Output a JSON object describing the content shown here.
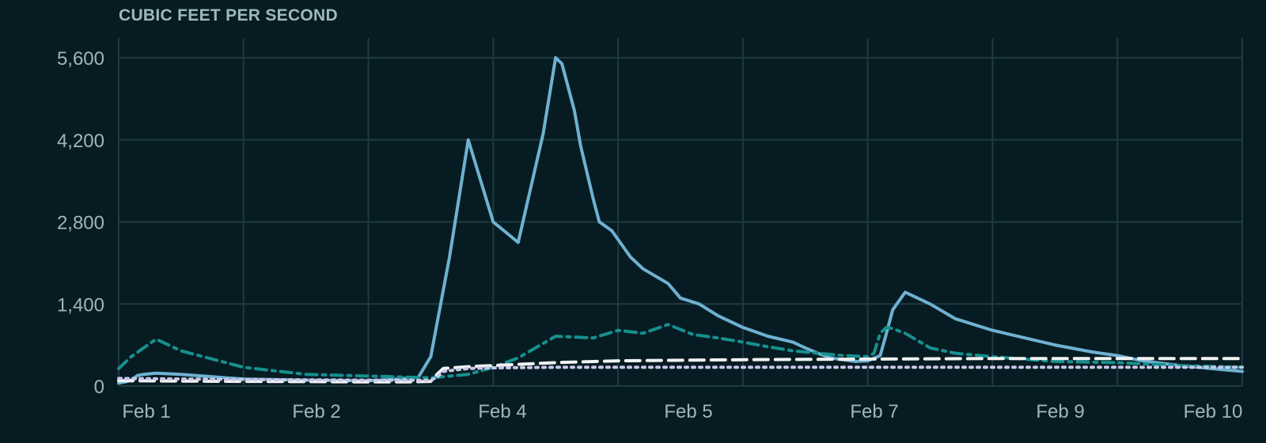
{
  "chart_data": {
    "type": "line",
    "title": "CUBIC FEET PER SECOND",
    "ylabel": "",
    "xlabel": "",
    "ylim": [
      0,
      5600
    ],
    "yticks": [
      0,
      1400,
      2800,
      4200,
      5600
    ],
    "ytick_labels": [
      "0",
      "1,400",
      "2,800",
      "4,200",
      "5,600"
    ],
    "xlim": [
      0,
      9
    ],
    "xticks": [
      0,
      1,
      2,
      3,
      4,
      5,
      6,
      7,
      8
    ],
    "xtick_labels": [
      "Feb 1",
      "Feb 2",
      "Feb 4",
      "Feb 5",
      "Feb 7",
      "Feb 9",
      "Feb 10"
    ],
    "xtick_label_positions": [
      0.05,
      1,
      2,
      3,
      4,
      5,
      6
    ],
    "grid": true,
    "series": [
      {
        "style": "solid",
        "color": "#6fb1d2",
        "x": [
          0,
          0.05,
          0.1,
          0.15,
          0.2,
          0.3,
          0.5,
          0.8,
          1.0,
          1.5,
          2.0,
          2.2,
          2.4,
          2.5,
          2.65,
          2.8,
          3.0,
          3.2,
          3.4,
          3.5,
          3.55,
          3.65,
          3.7,
          3.8,
          3.85,
          3.95,
          4.1,
          4.2,
          4.4,
          4.5,
          4.65,
          4.8,
          5.0,
          5.2,
          5.4,
          5.5,
          5.6,
          5.7,
          5.8,
          5.9,
          6.0,
          6.1,
          6.15,
          6.2,
          6.3,
          6.5,
          6.7,
          7.0,
          7.3,
          7.5,
          7.8,
          8.0,
          8.2,
          8.5,
          9.0
        ],
        "y": [
          50,
          70,
          100,
          180,
          200,
          220,
          200,
          150,
          120,
          100,
          90,
          110,
          150,
          500,
          2200,
          4200,
          2800,
          2450,
          4300,
          5600,
          5500,
          4700,
          4100,
          3200,
          2800,
          2650,
          2200,
          2000,
          1750,
          1500,
          1400,
          1200,
          1000,
          850,
          750,
          650,
          560,
          480,
          450,
          420,
          430,
          520,
          900,
          1300,
          1600,
          1400,
          1150,
          950,
          800,
          700,
          580,
          520,
          430,
          350,
          250
        ]
      },
      {
        "style": "dashdot",
        "color": "#16908f",
        "x": [
          0,
          0.1,
          0.3,
          0.5,
          1.0,
          1.5,
          2.0,
          2.5,
          2.8,
          3.0,
          3.2,
          3.5,
          3.8,
          4.0,
          4.2,
          4.4,
          4.6,
          4.8,
          5.0,
          5.2,
          5.4,
          5.5,
          5.6,
          5.8,
          6.0,
          6.05,
          6.1,
          6.15,
          6.2,
          6.3,
          6.5,
          6.7,
          7.0,
          7.5,
          8.0,
          8.5,
          9.0
        ],
        "y": [
          300,
          500,
          800,
          600,
          320,
          200,
          170,
          140,
          200,
          320,
          480,
          850,
          820,
          950,
          900,
          1050,
          880,
          820,
          750,
          670,
          600,
          580,
          560,
          520,
          500,
          560,
          900,
          1000,
          980,
          900,
          650,
          560,
          500,
          420,
          400,
          350,
          320
        ]
      },
      {
        "style": "dashed",
        "color": "#f2f2f2",
        "x": [
          0,
          0.5,
          1.0,
          1.5,
          2.0,
          2.3,
          2.5,
          2.55,
          2.6,
          2.8,
          3.0,
          3.2,
          3.5,
          4.0,
          4.5,
          5.0,
          6.0,
          7.0,
          8.0,
          9.0
        ],
        "y": [
          90,
          85,
          80,
          75,
          70,
          70,
          80,
          200,
          300,
          330,
          350,
          370,
          400,
          430,
          440,
          450,
          460,
          470,
          470,
          470
        ]
      },
      {
        "style": "dotted",
        "color": "#c9c6e8",
        "x": [
          0,
          0.5,
          1.0,
          1.5,
          2.0,
          2.5,
          2.55,
          2.6,
          2.8,
          3.0,
          3.5,
          4.0,
          5.0,
          6.0,
          7.0,
          8.0,
          9.0
        ],
        "y": [
          130,
          120,
          110,
          105,
          100,
          100,
          150,
          250,
          300,
          310,
          320,
          320,
          320,
          320,
          320,
          320,
          320
        ]
      }
    ]
  }
}
